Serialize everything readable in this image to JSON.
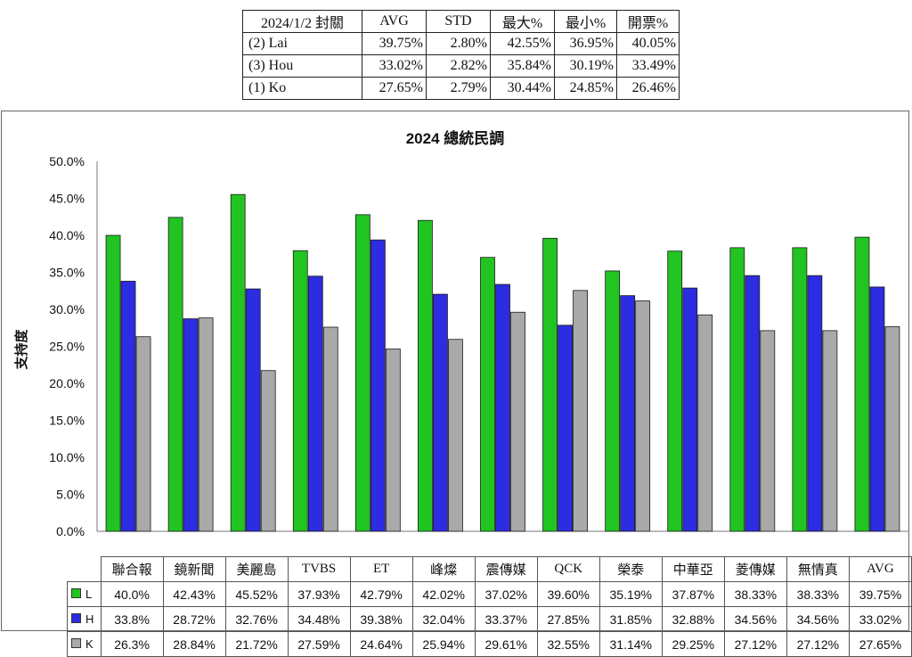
{
  "summary": {
    "headers": [
      "2024/1/2 封關",
      "AVG",
      "STD",
      "最大%",
      "最小%",
      "開票%"
    ],
    "rows": [
      [
        "(2) Lai",
        "39.75%",
        "2.80%",
        "42.55%",
        "36.95%",
        "40.05%"
      ],
      [
        "(3) Hou",
        "33.02%",
        "2.82%",
        "35.84%",
        "30.19%",
        "33.49%"
      ],
      [
        "(1) Ko",
        "27.65%",
        "2.79%",
        "30.44%",
        "24.85%",
        "26.46%"
      ]
    ]
  },
  "chart_data": {
    "type": "bar",
    "title": "2024 總統民調",
    "xlabel": "",
    "ylabel": "支持度",
    "ylim": [
      0,
      50
    ],
    "yticks": [
      "0.0%",
      "5.0%",
      "10.0%",
      "15.0%",
      "20.0%",
      "25.0%",
      "30.0%",
      "35.0%",
      "40.0%",
      "45.0%",
      "50.0%"
    ],
    "grid": false,
    "legend": "data-table",
    "categories": [
      "聯合報",
      "鏡新聞",
      "美麗島",
      "TVBS",
      "ET",
      "峰燦",
      "震傳媒",
      "QCK",
      "榮泰",
      "中華亞",
      "菱傳媒",
      "無情真",
      "AVG"
    ],
    "series": [
      {
        "name": "L",
        "color": "#22c422",
        "values": [
          40.0,
          42.43,
          45.52,
          37.93,
          42.79,
          42.02,
          37.02,
          39.6,
          35.19,
          37.87,
          38.33,
          38.33,
          39.75
        ],
        "labels": [
          "40.0%",
          "42.43%",
          "45.52%",
          "37.93%",
          "42.79%",
          "42.02%",
          "37.02%",
          "39.60%",
          "35.19%",
          "37.87%",
          "38.33%",
          "38.33%",
          "39.75%"
        ]
      },
      {
        "name": "H",
        "color": "#2c2ce0",
        "values": [
          33.8,
          28.72,
          32.76,
          34.48,
          39.38,
          32.04,
          33.37,
          27.85,
          31.85,
          32.88,
          34.56,
          34.56,
          33.02
        ],
        "labels": [
          "33.8%",
          "28.72%",
          "32.76%",
          "34.48%",
          "39.38%",
          "32.04%",
          "33.37%",
          "27.85%",
          "31.85%",
          "32.88%",
          "34.56%",
          "34.56%",
          "33.02%"
        ]
      },
      {
        "name": "K",
        "color": "#a9a9a9",
        "values": [
          26.3,
          28.84,
          21.72,
          27.59,
          24.64,
          25.94,
          29.61,
          32.55,
          31.14,
          29.25,
          27.12,
          27.12,
          27.65
        ],
        "labels": [
          "26.3%",
          "28.84%",
          "21.72%",
          "27.59%",
          "24.64%",
          "25.94%",
          "29.61%",
          "32.55%",
          "31.14%",
          "29.25%",
          "27.12%",
          "27.12%",
          "27.65%"
        ]
      }
    ]
  }
}
